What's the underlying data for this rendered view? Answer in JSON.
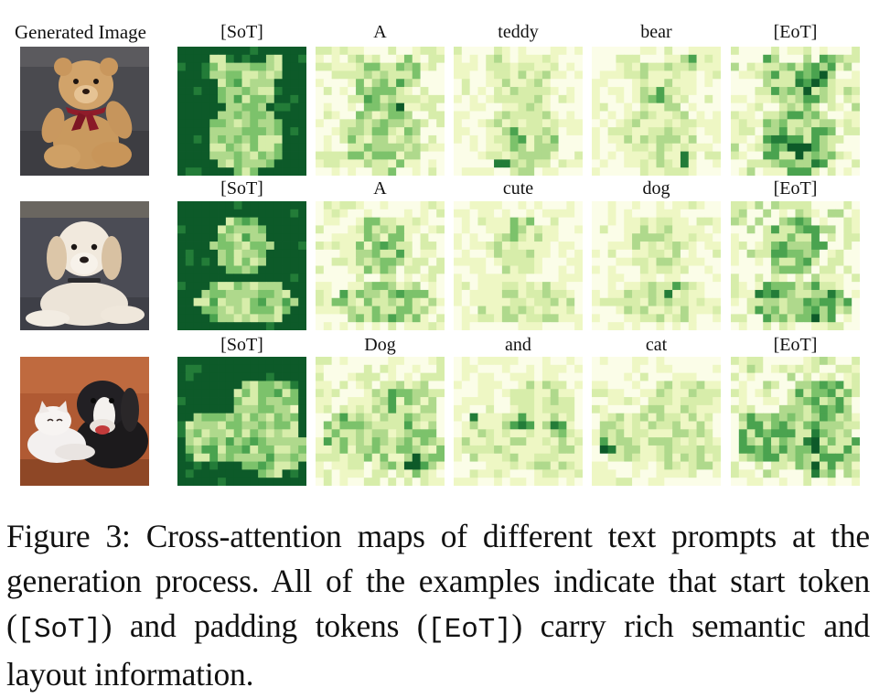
{
  "figure": {
    "column_header": "Generated Image",
    "rows": [
      {
        "image": "teddy-bear-photo",
        "tokens": [
          "[SoT]",
          "A",
          "teddy",
          "bear",
          "[EoT]"
        ]
      },
      {
        "image": "puppy-photo",
        "tokens": [
          "[SoT]",
          "A",
          "cute",
          "dog",
          "[EoT]"
        ]
      },
      {
        "image": "dog-and-cat-photo",
        "tokens": [
          "[SoT]",
          "Dog",
          "and",
          "cat",
          "[EoT]"
        ]
      }
    ],
    "palette": [
      "#fbfde8",
      "#eef7c4",
      "#d7edaa",
      "#afd98c",
      "#7cc26b",
      "#4aa34f",
      "#237c38",
      "#0d5a29"
    ]
  },
  "caption": {
    "label": "Figure 3:",
    "text_1": "Cross-attention maps of different text prompts at the generation process.  All of the examples indicate that start token (",
    "mono_1": "[SoT]",
    "text_2": ") and padding tokens (",
    "mono_2": "[EoT]",
    "text_3": ") carry rich semantic and layout information."
  }
}
